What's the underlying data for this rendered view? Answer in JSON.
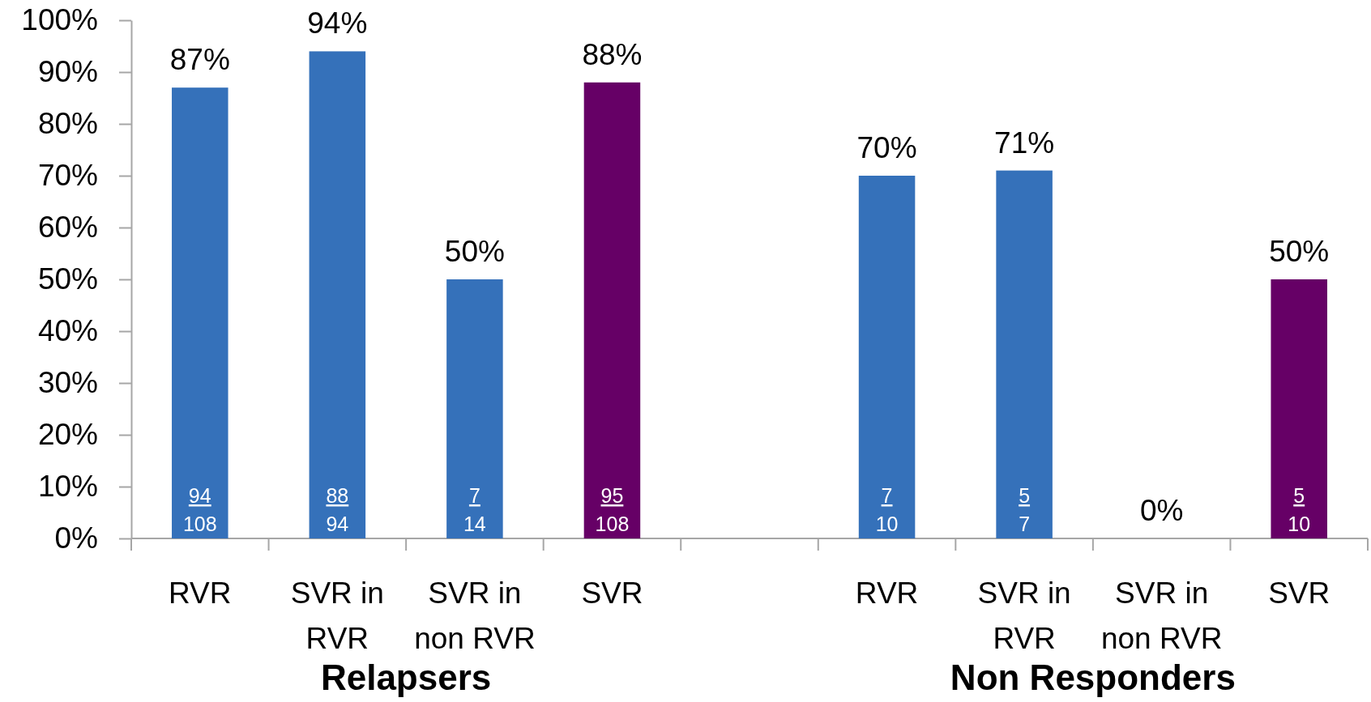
{
  "chart_data": {
    "type": "bar",
    "categories": [
      "RVR",
      "SVR in RVR",
      "SVR in non RVR",
      "SVR",
      null,
      "RVR",
      "SVR in RVR",
      "SVR in non RVR",
      "SVR"
    ],
    "values": [
      87,
      94,
      50,
      88,
      null,
      70,
      71,
      0,
      50
    ],
    "colors": [
      "#3571ba",
      "#3571ba",
      "#3571ba",
      "#660066",
      null,
      "#3571ba",
      "#3571ba",
      "#3571ba",
      "#660066"
    ],
    "value_labels": [
      "87%",
      "94%",
      "50%",
      "88%",
      null,
      "70%",
      "71%",
      "0%",
      "50%"
    ],
    "ylim": [
      0,
      100
    ],
    "yticks": [
      {
        "value": 0,
        "label": "0%"
      },
      {
        "value": 10,
        "label": "10%"
      },
      {
        "value": 20,
        "label": "20%"
      },
      {
        "value": 30,
        "label": "30%"
      },
      {
        "value": 40,
        "label": "40%"
      },
      {
        "value": 50,
        "label": "50%"
      },
      {
        "value": 60,
        "label": "60%"
      },
      {
        "value": 70,
        "label": "70%"
      },
      {
        "value": 80,
        "label": "80%"
      },
      {
        "value": 90,
        "label": "90%"
      },
      {
        "value": 100,
        "label": "100%"
      }
    ],
    "annotations": [
      "94\n108",
      "88\n94",
      "7\n14",
      "95\n108",
      "7\n10",
      "5\n7",
      "5\n10",
      "Relapsers",
      "Non Responders"
    ]
  }
}
